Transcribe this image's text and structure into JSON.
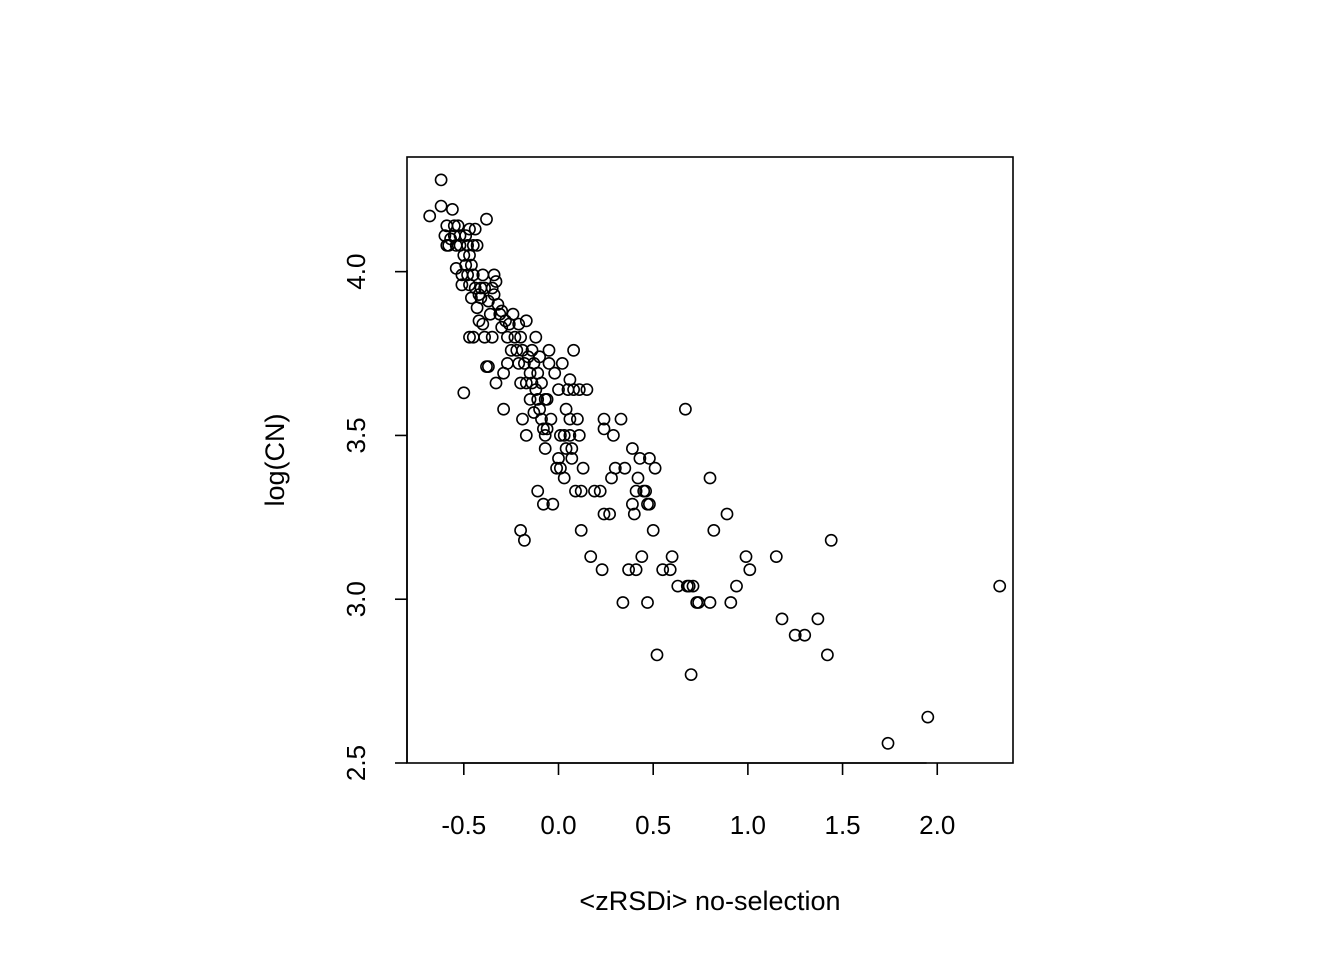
{
  "chart_data": {
    "type": "scatter",
    "title": "",
    "xlabel": "<zRSDi> no-selection",
    "ylabel": "log(CN)",
    "xlim": [
      -0.8,
      2.4
    ],
    "ylim": [
      2.5,
      4.35
    ],
    "x_ticks": [
      -0.5,
      0.0,
      0.5,
      1.0,
      1.5,
      2.0
    ],
    "x_tick_labels": [
      "-0.5",
      "0.0",
      "0.5",
      "1.0",
      "1.5",
      "2.0"
    ],
    "y_ticks": [
      2.5,
      3.0,
      3.5,
      4.0
    ],
    "y_tick_labels": [
      "2.5",
      "3.0",
      "3.5",
      "4.0"
    ],
    "grid": false,
    "legend": "none",
    "marker": "open-circle",
    "marker_color": "#000000",
    "points": [
      [
        -0.68,
        4.17
      ],
      [
        -0.62,
        4.28
      ],
      [
        -0.62,
        4.2
      ],
      [
        -0.6,
        4.11
      ],
      [
        -0.59,
        4.14
      ],
      [
        -0.59,
        4.08
      ],
      [
        -0.58,
        4.08
      ],
      [
        -0.57,
        4.1
      ],
      [
        -0.56,
        4.19
      ],
      [
        -0.55,
        4.14
      ],
      [
        -0.55,
        4.11
      ],
      [
        -0.54,
        4.08
      ],
      [
        -0.54,
        4.01
      ],
      [
        -0.53,
        4.14
      ],
      [
        -0.52,
        4.11
      ],
      [
        -0.52,
        4.08
      ],
      [
        -0.51,
        3.99
      ],
      [
        -0.51,
        3.96
      ],
      [
        -0.5,
        4.05
      ],
      [
        -0.5,
        3.63
      ],
      [
        -0.49,
        4.11
      ],
      [
        -0.49,
        4.02
      ],
      [
        -0.48,
        4.08
      ],
      [
        -0.48,
        3.99
      ],
      [
        -0.47,
        4.13
      ],
      [
        -0.47,
        4.05
      ],
      [
        -0.47,
        3.96
      ],
      [
        -0.47,
        3.8
      ],
      [
        -0.46,
        4.02
      ],
      [
        -0.46,
        3.92
      ],
      [
        -0.45,
        4.08
      ],
      [
        -0.45,
        3.99
      ],
      [
        -0.45,
        3.8
      ],
      [
        -0.44,
        4.13
      ],
      [
        -0.44,
        3.95
      ],
      [
        -0.43,
        4.08
      ],
      [
        -0.43,
        3.89
      ],
      [
        -0.42,
        3.93
      ],
      [
        -0.42,
        3.85
      ],
      [
        -0.41,
        3.95
      ],
      [
        -0.41,
        3.92
      ],
      [
        -0.4,
        3.99
      ],
      [
        -0.4,
        3.84
      ],
      [
        -0.39,
        3.95
      ],
      [
        -0.39,
        3.8
      ],
      [
        -0.38,
        4.16
      ],
      [
        -0.38,
        3.71
      ],
      [
        -0.37,
        3.91
      ],
      [
        -0.37,
        3.71
      ],
      [
        -0.36,
        3.87
      ],
      [
        -0.35,
        3.95
      ],
      [
        -0.35,
        3.8
      ],
      [
        -0.34,
        3.99
      ],
      [
        -0.34,
        3.93
      ],
      [
        -0.33,
        3.97
      ],
      [
        -0.33,
        3.66
      ],
      [
        -0.32,
        3.9
      ],
      [
        -0.31,
        3.87
      ],
      [
        -0.3,
        3.88
      ],
      [
        -0.3,
        3.83
      ],
      [
        -0.29,
        3.69
      ],
      [
        -0.29,
        3.58
      ],
      [
        -0.28,
        3.85
      ],
      [
        -0.27,
        3.8
      ],
      [
        -0.27,
        3.72
      ],
      [
        -0.26,
        3.84
      ],
      [
        -0.25,
        3.76
      ],
      [
        -0.24,
        3.87
      ],
      [
        -0.23,
        3.8
      ],
      [
        -0.22,
        3.76
      ],
      [
        -0.21,
        3.84
      ],
      [
        -0.21,
        3.72
      ],
      [
        -0.2,
        3.8
      ],
      [
        -0.2,
        3.66
      ],
      [
        -0.2,
        3.21
      ],
      [
        -0.19,
        3.76
      ],
      [
        -0.19,
        3.55
      ],
      [
        -0.18,
        3.72
      ],
      [
        -0.18,
        3.18
      ],
      [
        -0.17,
        3.85
      ],
      [
        -0.17,
        3.66
      ],
      [
        -0.17,
        3.5
      ],
      [
        -0.16,
        3.74
      ],
      [
        -0.15,
        3.69
      ],
      [
        -0.15,
        3.61
      ],
      [
        -0.14,
        3.76
      ],
      [
        -0.14,
        3.66
      ],
      [
        -0.13,
        3.72
      ],
      [
        -0.13,
        3.57
      ],
      [
        -0.12,
        3.8
      ],
      [
        -0.12,
        3.64
      ],
      [
        -0.11,
        3.69
      ],
      [
        -0.11,
        3.61
      ],
      [
        -0.11,
        3.33
      ],
      [
        -0.1,
        3.74
      ],
      [
        -0.1,
        3.58
      ],
      [
        -0.09,
        3.55
      ],
      [
        -0.09,
        3.66
      ],
      [
        -0.08,
        3.52
      ],
      [
        -0.08,
        3.29
      ],
      [
        -0.07,
        3.61
      ],
      [
        -0.07,
        3.5
      ],
      [
        -0.07,
        3.46
      ],
      [
        -0.06,
        3.61
      ],
      [
        -0.06,
        3.52
      ],
      [
        -0.05,
        3.76
      ],
      [
        -0.05,
        3.72
      ],
      [
        -0.04,
        3.55
      ],
      [
        -0.03,
        3.29
      ],
      [
        -0.02,
        3.69
      ],
      [
        -0.01,
        3.4
      ],
      [
        0.0,
        3.64
      ],
      [
        0.0,
        3.43
      ],
      [
        0.01,
        3.5
      ],
      [
        0.01,
        3.4
      ],
      [
        0.02,
        3.72
      ],
      [
        0.03,
        3.5
      ],
      [
        0.03,
        3.37
      ],
      [
        0.04,
        3.58
      ],
      [
        0.04,
        3.46
      ],
      [
        0.05,
        3.64
      ],
      [
        0.06,
        3.67
      ],
      [
        0.06,
        3.55
      ],
      [
        0.06,
        3.5
      ],
      [
        0.07,
        3.46
      ],
      [
        0.07,
        3.43
      ],
      [
        0.08,
        3.76
      ],
      [
        0.08,
        3.64
      ],
      [
        0.09,
        3.33
      ],
      [
        0.1,
        3.55
      ],
      [
        0.11,
        3.5
      ],
      [
        0.11,
        3.64
      ],
      [
        0.12,
        3.21
      ],
      [
        0.12,
        3.33
      ],
      [
        0.13,
        3.4
      ],
      [
        0.15,
        3.64
      ],
      [
        0.17,
        3.13
      ],
      [
        0.19,
        3.33
      ],
      [
        0.22,
        3.33
      ],
      [
        0.23,
        3.09
      ],
      [
        0.24,
        3.55
      ],
      [
        0.24,
        3.52
      ],
      [
        0.24,
        3.26
      ],
      [
        0.27,
        3.26
      ],
      [
        0.28,
        3.37
      ],
      [
        0.29,
        3.5
      ],
      [
        0.3,
        3.4
      ],
      [
        0.33,
        3.55
      ],
      [
        0.34,
        2.99
      ],
      [
        0.35,
        3.4
      ],
      [
        0.37,
        3.09
      ],
      [
        0.39,
        3.46
      ],
      [
        0.39,
        3.29
      ],
      [
        0.4,
        3.26
      ],
      [
        0.41,
        3.33
      ],
      [
        0.41,
        3.09
      ],
      [
        0.42,
        3.37
      ],
      [
        0.43,
        3.43
      ],
      [
        0.44,
        3.13
      ],
      [
        0.45,
        3.33
      ],
      [
        0.46,
        3.33
      ],
      [
        0.47,
        3.29
      ],
      [
        0.47,
        2.99
      ],
      [
        0.48,
        3.43
      ],
      [
        0.48,
        3.29
      ],
      [
        0.5,
        3.21
      ],
      [
        0.51,
        3.4
      ],
      [
        0.52,
        2.83
      ],
      [
        0.55,
        3.09
      ],
      [
        0.59,
        3.09
      ],
      [
        0.6,
        3.13
      ],
      [
        0.63,
        3.04
      ],
      [
        0.67,
        3.58
      ],
      [
        0.68,
        3.04
      ],
      [
        0.69,
        3.04
      ],
      [
        0.7,
        2.77
      ],
      [
        0.71,
        3.04
      ],
      [
        0.73,
        2.99
      ],
      [
        0.74,
        2.99
      ],
      [
        0.8,
        3.37
      ],
      [
        0.8,
        2.99
      ],
      [
        0.82,
        3.21
      ],
      [
        0.89,
        3.26
      ],
      [
        0.91,
        2.99
      ],
      [
        0.94,
        3.04
      ],
      [
        0.99,
        3.13
      ],
      [
        1.01,
        3.09
      ],
      [
        1.15,
        3.13
      ],
      [
        1.18,
        2.94
      ],
      [
        1.25,
        2.89
      ],
      [
        1.3,
        2.89
      ],
      [
        1.37,
        2.94
      ],
      [
        1.42,
        2.83
      ],
      [
        1.44,
        3.18
      ],
      [
        1.74,
        2.56
      ],
      [
        1.95,
        2.64
      ],
      [
        2.33,
        3.04
      ]
    ]
  }
}
